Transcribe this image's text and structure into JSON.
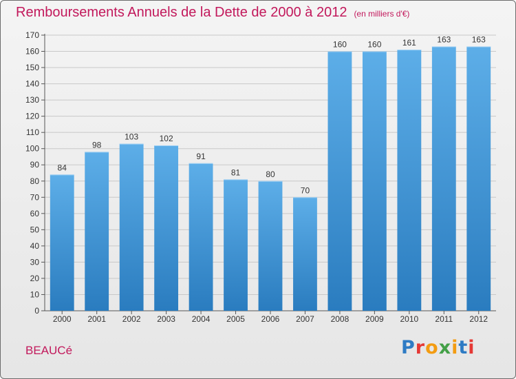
{
  "title": "Remboursements Annuels de la Dette de 2000 à 2012",
  "unit": "(en milliers d'€)",
  "city": "BEAUCé",
  "logo": {
    "letters": [
      "P",
      "r",
      "o",
      "x",
      "i",
      "t",
      "i"
    ],
    "colors": [
      "#2e7bc4",
      "#e53935",
      "#f39c12",
      "#43a047",
      "#f39c12",
      "#2e7bc4",
      "#e53935"
    ]
  },
  "colors": {
    "title": "#c2185b",
    "bar_light": "#5daee8",
    "bar_dark": "#2a7cbf"
  },
  "chart_data": {
    "type": "bar",
    "categories": [
      "2000",
      "2001",
      "2002",
      "2003",
      "2004",
      "2005",
      "2006",
      "2007",
      "2008",
      "2009",
      "2010",
      "2011",
      "2012"
    ],
    "values": [
      84,
      98,
      103,
      102,
      91,
      81,
      80,
      70,
      160,
      160,
      161,
      163,
      163
    ],
    "ylim": [
      0,
      170
    ],
    "yticks": [
      0,
      10,
      20,
      30,
      40,
      50,
      60,
      70,
      80,
      90,
      100,
      110,
      120,
      130,
      140,
      150,
      160,
      170
    ],
    "grid": true,
    "data_labels": true
  }
}
